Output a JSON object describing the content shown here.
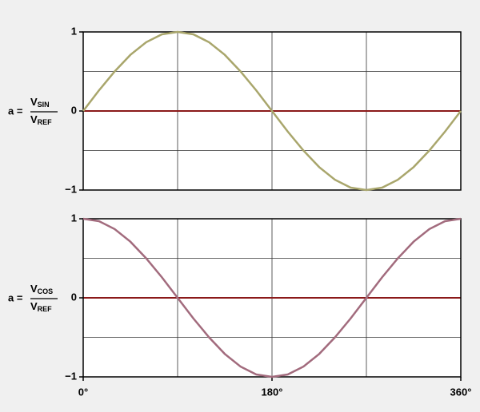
{
  "chart_data": [
    {
      "type": "line",
      "ylabel": {
        "prefix": "a =",
        "numerator": "V",
        "numerator_sub": "SIN",
        "denominator": "V",
        "denominator_sub": "REF"
      },
      "x": [
        0,
        15,
        30,
        45,
        60,
        75,
        90,
        105,
        120,
        135,
        150,
        165,
        180,
        195,
        210,
        225,
        240,
        255,
        270,
        285,
        300,
        315,
        330,
        345,
        360
      ],
      "series": [
        {
          "color": "#a9a66c",
          "values": [
            0,
            0.26,
            0.5,
            0.71,
            0.87,
            0.97,
            1,
            0.97,
            0.87,
            0.71,
            0.5,
            0.26,
            0,
            -0.26,
            -0.5,
            -0.71,
            -0.87,
            -0.97,
            -1,
            -0.97,
            -0.87,
            -0.71,
            -0.5,
            -0.26,
            0
          ]
        }
      ],
      "xlim": [
        0,
        360
      ],
      "ylim": [
        -1,
        1
      ],
      "yticks": [
        {
          "value": -1,
          "label": "−1"
        },
        0,
        1
      ],
      "xgrid": [
        0,
        90,
        180,
        270,
        360
      ],
      "ygrid": [
        -1,
        -0.5,
        0,
        0.5,
        1
      ],
      "zero_line_color": "#8b1a1a"
    },
    {
      "type": "line",
      "ylabel": {
        "prefix": "a =",
        "numerator": "V",
        "numerator_sub": "COS",
        "denominator": "V",
        "denominator_sub": "REF"
      },
      "x": [
        0,
        15,
        30,
        45,
        60,
        75,
        90,
        105,
        120,
        135,
        150,
        165,
        180,
        195,
        210,
        225,
        240,
        255,
        270,
        285,
        300,
        315,
        330,
        345,
        360
      ],
      "series": [
        {
          "color": "#a26b7d",
          "values": [
            1,
            0.97,
            0.87,
            0.71,
            0.5,
            0.26,
            0,
            -0.26,
            -0.5,
            -0.71,
            -0.87,
            -0.97,
            -1,
            -0.97,
            -0.87,
            -0.71,
            -0.5,
            -0.26,
            0,
            0.26,
            0.5,
            0.71,
            0.87,
            0.97,
            1
          ]
        }
      ],
      "xlim": [
        0,
        360
      ],
      "ylim": [
        -1,
        1
      ],
      "yticks": [
        {
          "value": -1,
          "label": "−1"
        },
        0,
        1
      ],
      "xticks": [
        {
          "value": 0,
          "label": "0°"
        },
        {
          "value": 180,
          "label": "180°"
        },
        {
          "value": 360,
          "label": "360°"
        }
      ],
      "xgrid": [
        0,
        90,
        180,
        270,
        360
      ],
      "ygrid": [
        -1,
        -0.5,
        0,
        0.5,
        1
      ],
      "zero_line_color": "#8b1a1a"
    }
  ]
}
